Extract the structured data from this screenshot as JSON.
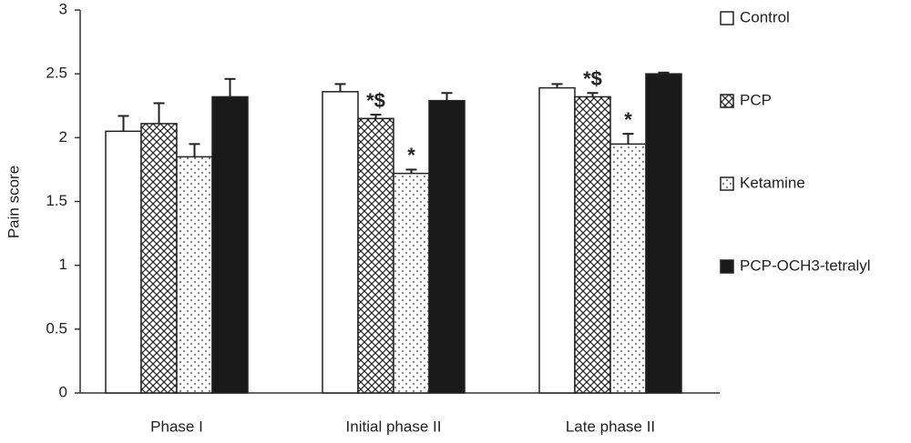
{
  "chart_data": {
    "type": "bar",
    "ylabel": "Pain score",
    "categories": [
      "Phase I",
      "Initial phase II",
      "Late phase II"
    ],
    "ylim": [
      0,
      3
    ],
    "yticks": [
      0,
      0.5,
      1,
      1.5,
      2,
      2.5,
      3
    ],
    "legend": "right",
    "series": [
      {
        "name": "Control",
        "color": "#ffffff",
        "pattern": "solid",
        "values": [
          2.05,
          2.36,
          2.39
        ],
        "errors": [
          0.12,
          0.06,
          0.03
        ],
        "value_annotations": [
          null,
          null,
          null
        ]
      },
      {
        "name": "PCP",
        "color": "#ffffff",
        "pattern": "crosshatch",
        "values": [
          2.11,
          2.15,
          2.32
        ],
        "errors": [
          0.16,
          0.03,
          0.03
        ],
        "value_annotations": [
          null,
          "*$",
          "*$"
        ]
      },
      {
        "name": "Ketamine",
        "color": "#ffffff",
        "pattern": "dots",
        "values": [
          1.85,
          1.72,
          1.95
        ],
        "errors": [
          0.1,
          0.03,
          0.08
        ],
        "value_annotations": [
          null,
          "*",
          "*"
        ]
      },
      {
        "name": "PCP-OCH3-tetralyl",
        "color": "#1a1a1a",
        "pattern": "solid",
        "values": [
          2.32,
          2.29,
          2.5
        ],
        "errors": [
          0.14,
          0.06,
          0.01
        ],
        "value_annotations": [
          null,
          null,
          null
        ]
      }
    ]
  }
}
